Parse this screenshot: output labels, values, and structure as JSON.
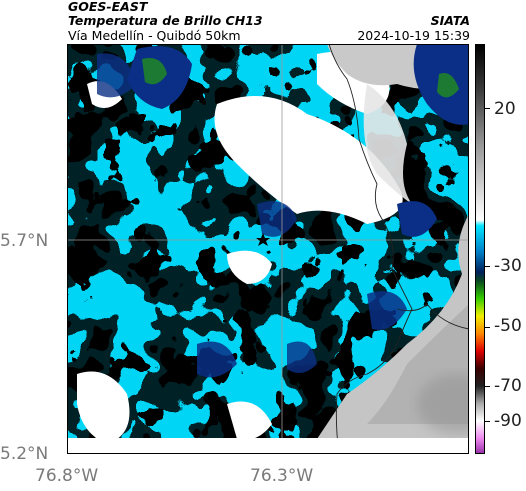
{
  "header": {
    "satellite": "GOES-EAST",
    "product": "Temperatura de Brillo CH13",
    "route": "Vía Medellín - Quibdó 50km",
    "org": "SIATA",
    "timestamp": "2024-10-19 15:39"
  },
  "axes": {
    "lat_ticks": [
      "5.7°N",
      "5.2°N"
    ],
    "lon_ticks": [
      "76.8°W",
      "76.3°W"
    ]
  },
  "colorbar": {
    "labels": [
      "20",
      "-30",
      "-50",
      "-70",
      "-90"
    ],
    "range": [
      -95,
      45
    ],
    "stops": [
      {
        "v": 45,
        "c": "#000000"
      },
      {
        "v": 30,
        "c": "#3a3a3a"
      },
      {
        "v": 10,
        "c": "#9a9a9a"
      },
      {
        "v": -15,
        "c": "#ffffff"
      },
      {
        "v": -17,
        "c": "#00e5ff"
      },
      {
        "v": -26,
        "c": "#007fc7"
      },
      {
        "v": -33,
        "c": "#00205a"
      },
      {
        "v": -36,
        "c": "#0a4a20"
      },
      {
        "v": -42,
        "c": "#33cc00"
      },
      {
        "v": -48,
        "c": "#eeee00"
      },
      {
        "v": -54,
        "c": "#ff8800"
      },
      {
        "v": -60,
        "c": "#dd0000"
      },
      {
        "v": -66,
        "c": "#3a0000"
      },
      {
        "v": -72,
        "c": "#222222"
      },
      {
        "v": -78,
        "c": "#aaaaaa"
      },
      {
        "v": -84,
        "c": "#ffffff"
      },
      {
        "v": -90,
        "c": "#ee88ee"
      },
      {
        "v": -95,
        "c": "#9933aa"
      }
    ]
  },
  "map": {
    "marker": "star-marker",
    "colors": {
      "cloud_cyan": "#00d5f5",
      "cloud_mid": "#0a8fd0",
      "cloud_deep": "#0b2f86",
      "cloud_green": "#1d7a33",
      "clear": "#ffffff",
      "terrain": "#c9c9c9",
      "gridline": "#9a9a9a",
      "border": "#222222"
    }
  }
}
